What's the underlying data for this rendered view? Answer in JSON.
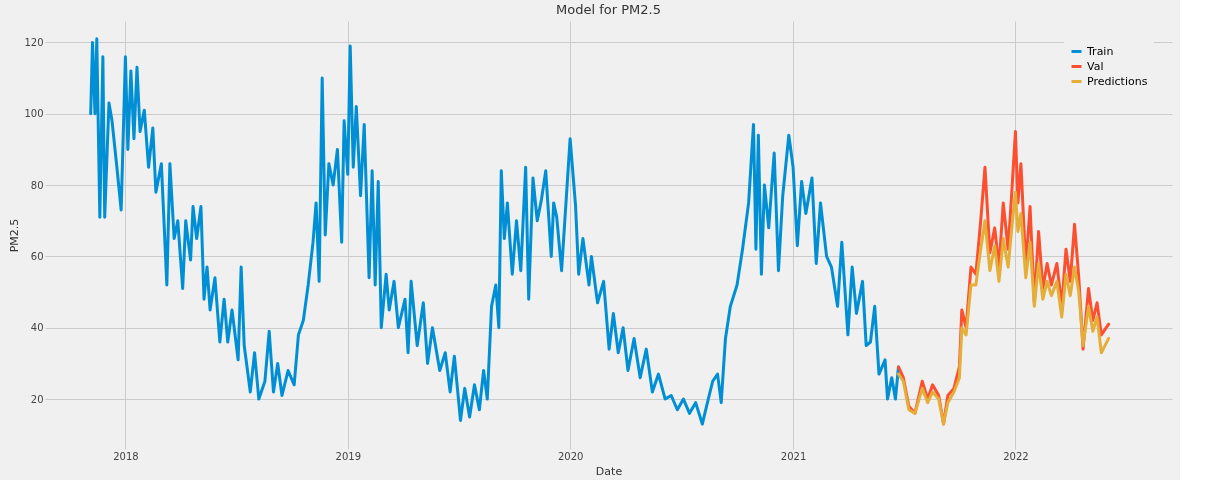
{
  "chart_data": {
    "type": "line",
    "title": "Model for PM2.5",
    "xlabel": "Date",
    "ylabel": "PM2.5",
    "xlim": [
      "2017-08-22",
      "2022-09-15"
    ],
    "ylim": [
      6,
      126
    ],
    "xticks": [
      "2018",
      "2019",
      "2020",
      "2021",
      "2022"
    ],
    "yticks": [
      20,
      40,
      60,
      80,
      100,
      120
    ],
    "grid": true,
    "legend": "top right",
    "line_style": "solid",
    "marker": "none",
    "series": [
      {
        "name": "Train",
        "color": "#008fd5",
        "x": [
          "2017-11-05",
          "2017-11-08",
          "2017-11-12",
          "2017-11-15",
          "2017-11-20",
          "2017-11-25",
          "2017-11-28",
          "2017-12-05",
          "2017-12-10",
          "2017-12-18",
          "2017-12-25",
          "2018-01-01",
          "2018-01-05",
          "2018-01-10",
          "2018-01-15",
          "2018-01-20",
          "2018-01-25",
          "2018-02-01",
          "2018-02-08",
          "2018-02-15",
          "2018-02-20",
          "2018-03-01",
          "2018-03-05",
          "2018-03-10",
          "2018-03-15",
          "2018-03-22",
          "2018-03-28",
          "2018-04-05",
          "2018-04-10",
          "2018-04-18",
          "2018-04-22",
          "2018-04-28",
          "2018-05-05",
          "2018-05-10",
          "2018-05-15",
          "2018-05-20",
          "2018-05-28",
          "2018-06-05",
          "2018-06-12",
          "2018-06-18",
          "2018-06-25",
          "2018-07-05",
          "2018-07-10",
          "2018-07-15",
          "2018-07-25",
          "2018-08-01",
          "2018-08-08",
          "2018-08-18",
          "2018-08-25",
          "2018-09-01",
          "2018-09-08",
          "2018-09-15",
          "2018-09-25",
          "2018-10-05",
          "2018-10-12",
          "2018-10-20",
          "2018-10-28",
          "2018-11-05",
          "2018-11-10",
          "2018-11-15",
          "2018-11-20",
          "2018-11-25",
          "2018-12-01",
          "2018-12-08",
          "2018-12-15",
          "2018-12-22",
          "2018-12-26",
          "2019-01-01",
          "2019-01-05",
          "2019-01-10",
          "2019-01-15",
          "2019-01-22",
          "2019-01-28",
          "2019-02-05",
          "2019-02-10",
          "2019-02-15",
          "2019-02-20",
          "2019-02-25",
          "2019-03-05",
          "2019-03-10",
          "2019-03-18",
          "2019-03-25",
          "2019-04-05",
          "2019-04-10",
          "2019-04-15",
          "2019-04-25",
          "2019-05-05",
          "2019-05-12",
          "2019-05-20",
          "2019-06-01",
          "2019-06-10",
          "2019-06-18",
          "2019-06-25",
          "2019-07-05",
          "2019-07-12",
          "2019-07-20",
          "2019-07-28",
          "2019-08-05",
          "2019-08-12",
          "2019-08-18",
          "2019-08-25",
          "2019-09-01",
          "2019-09-06",
          "2019-09-10",
          "2019-09-15",
          "2019-09-20",
          "2019-09-28",
          "2019-10-05",
          "2019-10-12",
          "2019-10-20",
          "2019-10-25",
          "2019-11-01",
          "2019-11-08",
          "2019-11-15",
          "2019-11-22",
          "2019-12-01",
          "2019-12-05",
          "2019-12-10",
          "2019-12-18",
          "2020-01-01",
          "2020-01-10",
          "2020-01-15",
          "2020-01-22",
          "2020-02-01",
          "2020-02-05",
          "2020-02-15",
          "2020-02-25",
          "2020-03-05",
          "2020-03-12",
          "2020-03-20",
          "2020-03-28",
          "2020-04-05",
          "2020-04-15",
          "2020-04-25",
          "2020-05-05",
          "2020-05-15",
          "2020-05-25",
          "2020-06-05",
          "2020-06-15",
          "2020-06-25",
          "2020-07-05",
          "2020-07-15",
          "2020-07-25",
          "2020-08-05",
          "2020-08-12",
          "2020-08-22",
          "2020-08-30",
          "2020-09-05",
          "2020-09-12",
          "2020-09-20",
          "2020-10-01",
          "2020-10-10",
          "2020-10-20",
          "2020-10-28",
          "2020-11-01",
          "2020-11-05",
          "2020-11-10",
          "2020-11-15",
          "2020-11-22",
          "2020-12-01",
          "2020-12-08",
          "2020-12-15",
          "2020-12-25",
          "2021-01-01",
          "2021-01-08",
          "2021-01-15",
          "2021-01-22",
          "2021-02-01",
          "2021-02-08",
          "2021-02-15",
          "2021-02-25",
          "2021-03-05",
          "2021-03-15",
          "2021-03-22",
          "2021-04-01",
          "2021-04-08",
          "2021-04-15",
          "2021-04-25",
          "2021-05-01",
          "2021-05-08",
          "2021-05-15",
          "2021-05-22",
          "2021-06-01",
          "2021-06-05",
          "2021-06-12",
          "2021-06-18",
          "2021-06-23"
        ],
        "values": [
          100,
          120,
          100,
          121,
          71,
          116,
          71,
          103,
          98,
          85,
          73,
          116,
          90,
          112,
          93,
          113,
          95,
          101,
          85,
          96,
          78,
          86,
          71,
          52,
          86,
          65,
          70,
          51,
          70,
          59,
          74,
          65,
          74,
          48,
          57,
          45,
          54,
          36,
          48,
          36,
          45,
          31,
          57,
          35,
          22,
          33,
          20,
          25,
          39,
          22,
          30,
          21,
          28,
          24,
          38,
          42,
          52,
          64,
          75,
          53,
          110,
          66,
          86,
          80,
          90,
          64,
          98,
          83,
          119,
          85,
          102,
          77,
          97,
          54,
          84,
          52,
          81,
          40,
          55,
          45,
          53,
          40,
          48,
          33,
          53,
          35,
          47,
          30,
          40,
          28,
          33,
          22,
          32,
          14,
          23,
          15,
          24,
          17,
          28,
          20,
          46,
          52,
          40,
          84,
          65,
          75,
          55,
          70,
          56,
          85,
          48,
          82,
          70,
          76,
          84,
          60,
          75,
          71,
          56,
          93,
          74,
          55,
          65,
          52,
          60,
          47,
          53,
          34,
          44,
          33,
          40,
          28,
          37,
          26,
          34,
          22,
          27,
          20,
          21,
          17,
          20,
          16,
          19,
          13,
          18,
          25,
          27,
          19,
          37,
          46,
          52,
          62,
          75,
          97,
          62,
          94,
          55,
          80,
          68,
          89,
          56,
          77,
          94,
          85,
          63,
          81,
          72,
          82,
          58,
          75,
          60,
          57,
          46,
          64,
          38,
          57,
          44,
          53,
          35,
          36,
          46,
          27,
          31,
          20,
          26,
          20,
          29
        ]
      },
      {
        "name": "Val",
        "color": "#fc4f30",
        "x": [
          "2021-06-23",
          "2021-07-01",
          "2021-07-10",
          "2021-07-20",
          "2021-08-01",
          "2021-08-10",
          "2021-08-18",
          "2021-08-28",
          "2021-09-05",
          "2021-09-12",
          "2021-09-22",
          "2021-10-01",
          "2021-10-05",
          "2021-10-12",
          "2021-10-20",
          "2021-10-28",
          "2021-11-05",
          "2021-11-12",
          "2021-11-20",
          "2021-11-28",
          "2021-12-05",
          "2021-12-12",
          "2021-12-20",
          "2021-12-26",
          "2022-01-01",
          "2022-01-05",
          "2022-01-10",
          "2022-01-18",
          "2022-01-25",
          "2022-02-01",
          "2022-02-08",
          "2022-02-15",
          "2022-02-22",
          "2022-03-01",
          "2022-03-10",
          "2022-03-18",
          "2022-03-25",
          "2022-04-01",
          "2022-04-08",
          "2022-04-15",
          "2022-04-22",
          "2022-05-01",
          "2022-05-08",
          "2022-05-15",
          "2022-05-22",
          "2022-06-03"
        ],
        "values": [
          29,
          26,
          18,
          16,
          25,
          20,
          24,
          21,
          13,
          21,
          23,
          29,
          45,
          40,
          57,
          55,
          70,
          85,
          61,
          68,
          57,
          75,
          62,
          78,
          95,
          75,
          86,
          57,
          74,
          47,
          67,
          51,
          58,
          52,
          58,
          46,
          62,
          53,
          69,
          54,
          34,
          51,
          42,
          47,
          38,
          41
        ]
      },
      {
        "name": "Predictions",
        "color": "#e5ae38",
        "x": [
          "2021-06-23",
          "2021-07-01",
          "2021-07-10",
          "2021-07-20",
          "2021-08-01",
          "2021-08-10",
          "2021-08-18",
          "2021-08-28",
          "2021-09-05",
          "2021-09-12",
          "2021-09-22",
          "2021-10-01",
          "2021-10-05",
          "2021-10-12",
          "2021-10-20",
          "2021-10-28",
          "2021-11-05",
          "2021-11-12",
          "2021-11-20",
          "2021-11-28",
          "2021-12-05",
          "2021-12-12",
          "2021-12-20",
          "2021-12-26",
          "2022-01-01",
          "2022-01-05",
          "2022-01-10",
          "2022-01-18",
          "2022-01-25",
          "2022-02-01",
          "2022-02-08",
          "2022-02-15",
          "2022-02-22",
          "2022-03-01",
          "2022-03-10",
          "2022-03-18",
          "2022-03-25",
          "2022-04-01",
          "2022-04-08",
          "2022-04-15",
          "2022-04-22",
          "2022-05-01",
          "2022-05-08",
          "2022-05-15",
          "2022-05-22",
          "2022-06-03"
        ],
        "values": [
          27,
          25,
          17,
          16,
          23,
          19,
          22,
          20,
          13,
          19,
          22,
          26,
          40,
          38,
          52,
          52,
          62,
          70,
          56,
          63,
          53,
          65,
          57,
          68,
          78,
          67,
          72,
          54,
          64,
          46,
          58,
          48,
          53,
          49,
          53,
          43,
          55,
          49,
          57,
          50,
          35,
          46,
          39,
          43,
          33,
          37
        ]
      }
    ]
  }
}
